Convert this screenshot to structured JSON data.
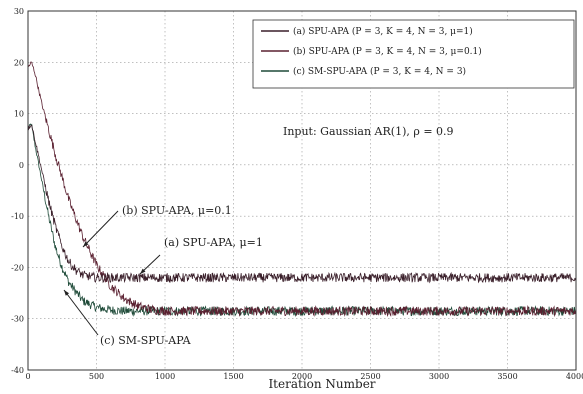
{
  "chart_data": {
    "type": "line",
    "xlabel": "Iteration Number",
    "ylabel": "",
    "xlim": [
      0,
      4000
    ],
    "ylim": [
      -40,
      30
    ],
    "x_ticks": [
      "0",
      "500",
      "1000",
      "1500",
      "2000",
      "2500",
      "3000",
      "3500",
      "4000"
    ],
    "y_ticks": [
      "30",
      "20",
      "10",
      "0",
      "-10",
      "-20",
      "-30",
      "-40"
    ],
    "grid": true,
    "legend_position": "top-right",
    "legend": [
      "(a) SPU-APA (P = 3, K = 4, N = 3, μ=1)",
      "(b) SPU-APA (P = 3, K = 4, N = 3, μ=0.1)",
      "(c) SM-SPU-APA (P = 3, K = 4, N = 3)"
    ],
    "annotation_text": "Input: Gaussian AR(1), ρ = 0.9",
    "curve_labels": [
      "(b) SPU-APA, μ=0.1",
      "(a) SPU-APA, μ=1",
      "(c) SM-SPU-APA"
    ],
    "series": [
      {
        "name": "(a) SPU-APA (P = 3, K = 4, N = 3, μ=1)",
        "color": "#3a1f2a",
        "x": [
          0,
          25,
          50,
          100,
          150,
          200,
          250,
          300,
          350,
          400,
          500,
          600,
          800,
          1000,
          1500,
          2000,
          2500,
          3000,
          3500,
          4000
        ],
        "y": [
          7,
          8,
          5,
          -1,
          -7,
          -12,
          -16,
          -19,
          -20.5,
          -21.5,
          -22,
          -22,
          -22,
          -22,
          -22,
          -22,
          -22,
          -22,
          -22,
          -22
        ]
      },
      {
        "name": "(b) SPU-APA (P = 3, K = 4, N = 3, μ=0.1)",
        "color": "#5a2030",
        "x": [
          0,
          25,
          50,
          100,
          200,
          300,
          400,
          500,
          600,
          700,
          800,
          900,
          1000,
          1500,
          2000,
          2500,
          3000,
          3500,
          4000
        ],
        "y": [
          19,
          20,
          18,
          12,
          2,
          -7,
          -14,
          -19.5,
          -23.5,
          -26,
          -27.5,
          -28.2,
          -28.5,
          -28.5,
          -28.5,
          -28.5,
          -28.5,
          -28.5,
          -28.5
        ]
      },
      {
        "name": "(c) SM-SPU-APA (P = 3, K = 4, N = 3)",
        "color": "#1e4a38",
        "x": [
          0,
          25,
          50,
          100,
          150,
          200,
          250,
          300,
          400,
          500,
          600,
          700,
          800,
          1000,
          1500,
          2000,
          2500,
          3000,
          3500,
          4000
        ],
        "y": [
          7,
          8,
          4,
          -3,
          -10,
          -16,
          -20,
          -23,
          -26.5,
          -27.8,
          -28.3,
          -28.5,
          -28.5,
          -28.5,
          -28.5,
          -28.5,
          -28.5,
          -28.5,
          -28.5,
          -28.5
        ]
      }
    ]
  }
}
